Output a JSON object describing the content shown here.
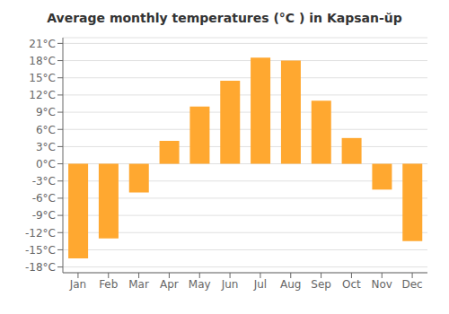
{
  "chart_data": {
    "type": "bar",
    "title": "Average monthly temperatures (°C ) in Kapsan-ŭp",
    "categories": [
      "Jan",
      "Feb",
      "Mar",
      "Apr",
      "May",
      "Jun",
      "Jul",
      "Aug",
      "Sep",
      "Oct",
      "Nov",
      "Dec"
    ],
    "values": [
      -16.5,
      -13.0,
      -5.0,
      4.0,
      10.0,
      14.5,
      18.5,
      18.0,
      11.0,
      4.5,
      -4.5,
      -13.5
    ],
    "color": "#FFA830",
    "ylim": [
      -19,
      22
    ],
    "yticks": [
      {
        "value": -18,
        "label": "-18°C"
      },
      {
        "value": -15,
        "label": "-15°C"
      },
      {
        "value": -12,
        "label": "-12°C"
      },
      {
        "value": -9,
        "label": "-9°C"
      },
      {
        "value": -6,
        "label": "-6°C"
      },
      {
        "value": -3,
        "label": "-3°C"
      },
      {
        "value": 0,
        "label": "0°C"
      },
      {
        "value": 3,
        "label": "3°C"
      },
      {
        "value": 6,
        "label": "6°C"
      },
      {
        "value": 9,
        "label": "9°C"
      },
      {
        "value": 12,
        "label": "12°C"
      },
      {
        "value": 15,
        "label": "15°C"
      },
      {
        "value": 18,
        "label": "18°C"
      },
      {
        "value": 21,
        "label": "21°C"
      }
    ],
    "grid": true
  }
}
